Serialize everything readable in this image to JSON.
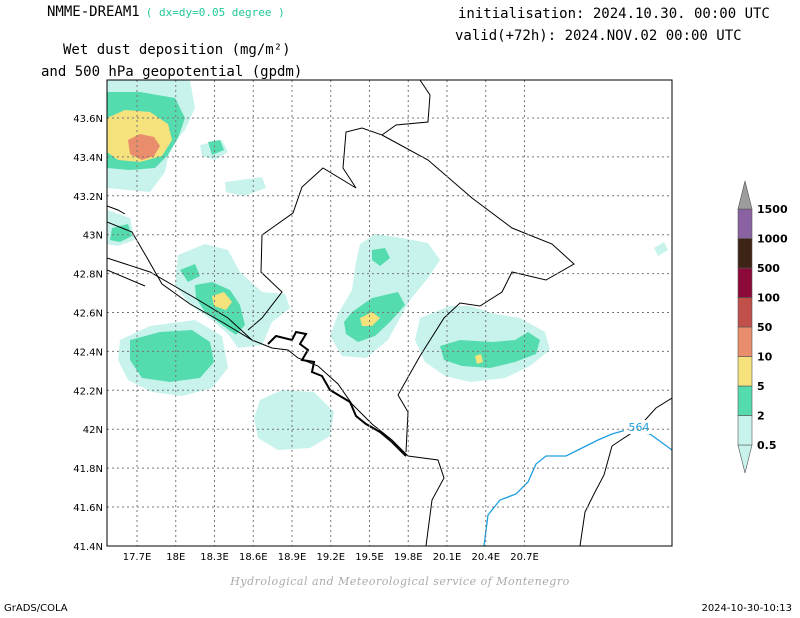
{
  "header": {
    "model": "NMME-DREAM1",
    "resolution": "( dx=dy=0.05 degree )",
    "initialisation": "initialisation: 2024.10.30. 00:00 UTC",
    "valid": "valid(+72h): 2024.NOV.02 00:00 UTC",
    "variable_line1": "Wet dust deposition (mg/m²)",
    "variable_line2": "and 500 hPa geopotential (gpdm)"
  },
  "map": {
    "lon_labels": [
      "17.7E",
      "18E",
      "18.3E",
      "18.6E",
      "18.9E",
      "19.2E",
      "19.5E",
      "19.8E",
      "20.1E",
      "20.4E",
      "20.7E"
    ],
    "lat_labels": [
      "43.6N",
      "43.4N",
      "43.2N",
      "43N",
      "42.8N",
      "42.6N",
      "42.4N",
      "42.2N",
      "42N",
      "41.8N",
      "41.6N",
      "41.4N"
    ],
    "contour_label": "564",
    "contour_color": "#1e9fe0",
    "border_color": "#000000"
  },
  "legend": {
    "levels": [
      "0.5",
      "2",
      "5",
      "10",
      "50",
      "100",
      "500",
      "1000",
      "1500"
    ],
    "colors": [
      "#c8f3ec",
      "#55dcae",
      "#f5e27c",
      "#ea8d6c",
      "#c1504b",
      "#8c0a3a",
      "#3d2414",
      "#8a62a2",
      "#9c9c9c"
    ]
  },
  "footer": {
    "credit": "Hydrological and Meteorological service of Montenegro",
    "software": "GrADS/COLA",
    "timestamp": "2024-10-30-10:13"
  }
}
